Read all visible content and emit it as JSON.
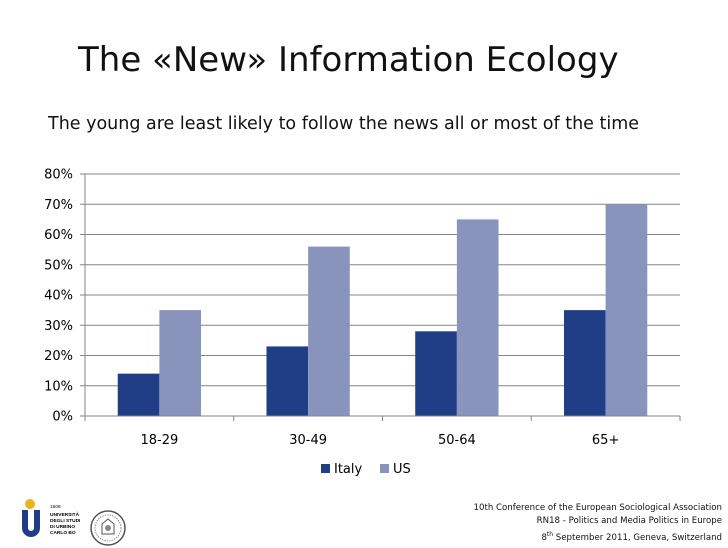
{
  "slide": {
    "title": "The «New» Information Ecology",
    "subtitle": "The young are least likely to follow the news all or most of the time"
  },
  "logo": {
    "name_lines": [
      "1506",
      "UNIVERSITÀ",
      "DEGLI STUDI",
      "DI URBINO",
      "CARLO BO"
    ]
  },
  "footer": {
    "line1": "10th Conference of the European Sociological Association",
    "line2": "RN18 - Politics and Media Politics in Europe",
    "line3_pre": "8",
    "line3_sup": "th",
    "line3_post": " September 2011, Geneva, Switzerland"
  },
  "chart_data": {
    "type": "bar",
    "title": "",
    "xlabel": "",
    "ylabel": "",
    "categories": [
      "18-29",
      "30-49",
      "50-64",
      "65+"
    ],
    "series": [
      {
        "name": "Italy",
        "values": [
          14,
          23,
          28,
          35
        ],
        "color": "#1f3e86"
      },
      {
        "name": "US",
        "values": [
          35,
          56,
          65,
          70
        ],
        "color": "#8994bd"
      }
    ],
    "ylim": [
      0,
      80
    ],
    "yticks": [
      "0%",
      "10%",
      "20%",
      "30%",
      "40%",
      "50%",
      "60%",
      "70%",
      "80%"
    ],
    "grid": true,
    "legend": "bottom"
  }
}
